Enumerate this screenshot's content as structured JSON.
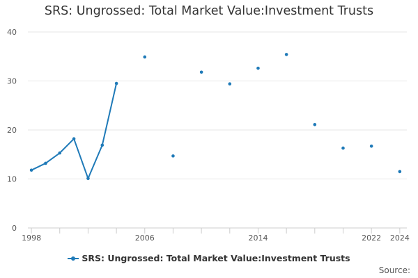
{
  "chart_data": {
    "type": "line",
    "title": "SRS: Ungrossed: Total Market Value:Investment Trusts",
    "xlabel": "",
    "ylabel": "",
    "xlim": [
      1997.75,
      2024.5
    ],
    "ylim": [
      0,
      40
    ],
    "x_ticks": [
      1998,
      2006,
      2014,
      2022,
      2024
    ],
    "y_ticks": [
      0,
      10,
      20,
      30,
      40
    ],
    "grid": true,
    "legend_position": "bottom",
    "source_label": "Source:",
    "color": "#1f7ab8",
    "series": [
      {
        "name": "SRS: Ungrossed: Total Market Value:Investment Trusts",
        "x": [
          1998,
          1999,
          2000,
          2001,
          2002,
          2003,
          2004,
          2006,
          2008,
          2010,
          2012,
          2014,
          2016,
          2018,
          2020,
          2022,
          2024
        ],
        "values": [
          11.8,
          13.2,
          15.3,
          18.2,
          10.1,
          16.9,
          29.5,
          34.9,
          14.7,
          31.8,
          29.4,
          32.6,
          35.4,
          21.1,
          16.3,
          16.7,
          11.5
        ],
        "connected": [
          true,
          true,
          true,
          true,
          true,
          true,
          true,
          false,
          false,
          false,
          false,
          false,
          false,
          false,
          false,
          false,
          false
        ]
      }
    ]
  }
}
